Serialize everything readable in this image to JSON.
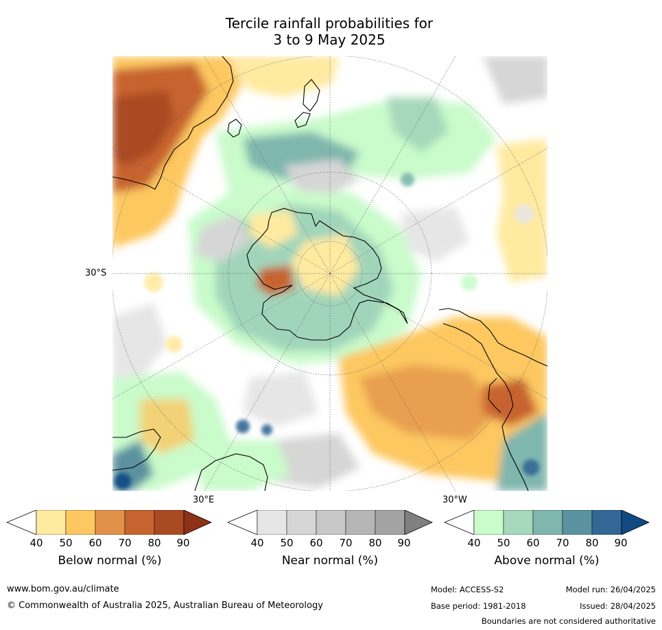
{
  "title": {
    "line1": "Tercile rainfall probabilities for",
    "line2": "3 to 9 May 2025"
  },
  "map": {
    "projection": "south polar stereographic",
    "labels": {
      "lat_30s": "30°S",
      "lon_30e": "30°E",
      "lon_30w": "30°W"
    }
  },
  "colorbars": [
    {
      "label": "Below normal (%)",
      "ticks": [
        "40",
        "50",
        "60",
        "70",
        "80",
        "90"
      ],
      "colors": [
        "#ffffff",
        "#ffeaa0",
        "#fdc861",
        "#e0924a",
        "#c7632f",
        "#aa4a23",
        "#8e3217"
      ]
    },
    {
      "label": "Near normal (%)",
      "ticks": [
        "40",
        "50",
        "60",
        "70",
        "80",
        "90"
      ],
      "colors": [
        "#ffffff",
        "#e6e6e6",
        "#d6d6d6",
        "#c8c8c8",
        "#b6b6b6",
        "#a3a3a3",
        "#808080"
      ]
    },
    {
      "label": "Above normal (%)",
      "ticks": [
        "40",
        "50",
        "60",
        "70",
        "80",
        "90"
      ],
      "colors": [
        "#ffffff",
        "#c9fbcb",
        "#a6d8bb",
        "#7fb6ad",
        "#5b92a0",
        "#336796",
        "#114a83"
      ]
    }
  ],
  "footer": {
    "url": "www.bom.gov.au/climate",
    "copyright": "© Commonwealth of Australia 2025, Australian Bureau of Meteorology",
    "model": "Model: ACCESS-S2",
    "model_run": "Model run: 26/04/2025",
    "base_period": "Base period: 1981-2018",
    "issued": "Issued: 28/04/2025",
    "disclaimer": "Boundaries are not considered authoritative"
  }
}
